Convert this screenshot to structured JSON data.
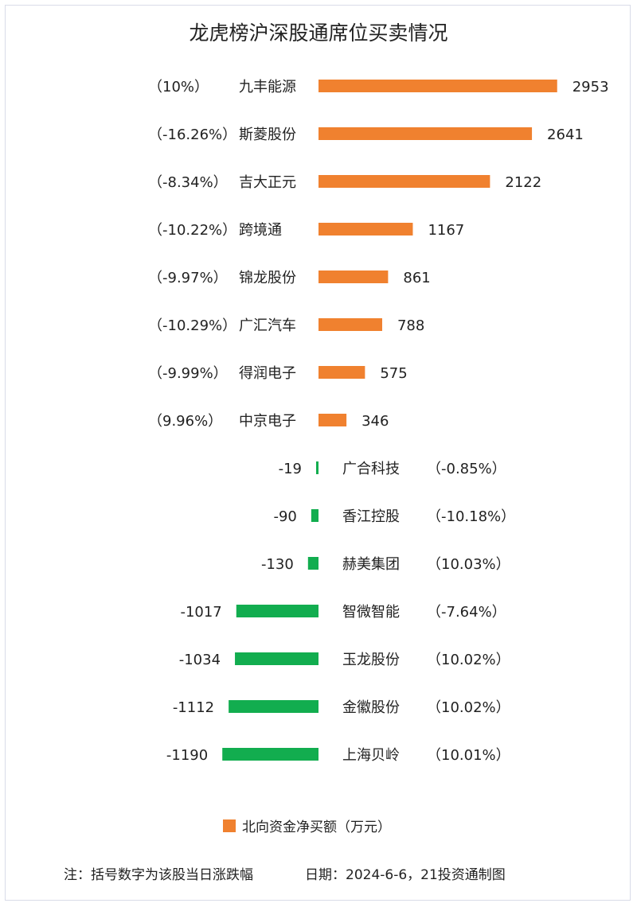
{
  "title": "龙虎榜沪深股通席位买卖情况",
  "legend": {
    "label": "北向资金净买额（万元）",
    "color": "#f0812f"
  },
  "footer": {
    "note": "注：括号数字为该股当日涨跌幅",
    "date": "日期：2024-6-6，21投资通制图"
  },
  "colors": {
    "positive": "#f0812f",
    "negative": "#12ad4f"
  },
  "chart_data": {
    "type": "bar",
    "orientation": "horizontal",
    "series": [
      {
        "name": "北向资金净买额（万元）"
      }
    ],
    "rows": [
      {
        "name": "九丰能源",
        "value": 2953,
        "change": "（10%）"
      },
      {
        "name": "斯菱股份",
        "value": 2641,
        "change": "（-16.26%）"
      },
      {
        "name": "吉大正元",
        "value": 2122,
        "change": "（-8.34%）"
      },
      {
        "name": "跨境通",
        "value": 1167,
        "change": "（-10.22%）"
      },
      {
        "name": "锦龙股份",
        "value": 861,
        "change": "（-9.97%）"
      },
      {
        "name": "广汇汽车",
        "value": 788,
        "change": "（-10.29%）"
      },
      {
        "name": "得润电子",
        "value": 575,
        "change": "（-9.99%）"
      },
      {
        "name": "中京电子",
        "value": 346,
        "change": "（9.96%）"
      },
      {
        "name": "广合科技",
        "value": -19,
        "change": "（-0.85%）"
      },
      {
        "name": "香江控股",
        "value": -90,
        "change": "（-10.18%）"
      },
      {
        "name": "赫美集团",
        "value": -130,
        "change": "（10.03%）"
      },
      {
        "name": "智微智能",
        "value": -1017,
        "change": "（-7.64%）"
      },
      {
        "name": "玉龙股份",
        "value": -1034,
        "change": "（10.02%）"
      },
      {
        "name": "金徽股份",
        "value": -1112,
        "change": "（10.02%）"
      },
      {
        "name": "上海贝岭",
        "value": -1190,
        "change": "（10.01%）"
      }
    ]
  }
}
